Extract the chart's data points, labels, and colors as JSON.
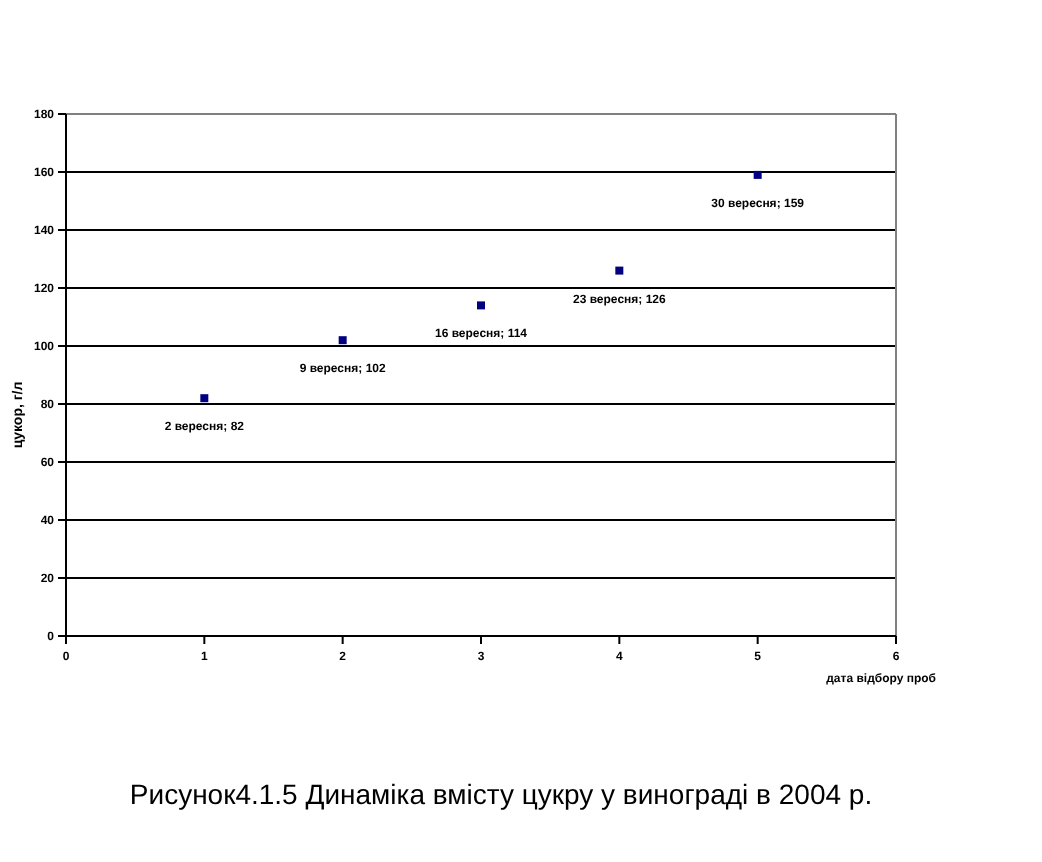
{
  "chart_data": {
    "type": "scatter",
    "title": "Рисунок4.1.5 Динаміка вмісту цукру у винограді в 2004 р.",
    "xlabel": "дата відбору проб",
    "ylabel": "цукор, г/л",
    "x": [
      1,
      2,
      3,
      4,
      5
    ],
    "values": [
      82,
      102,
      114,
      126,
      159
    ],
    "color": "#000080",
    "value_labels": [
      "2 вересня; 82",
      "9 вересня; 102",
      "16 вересня; 114",
      "23 вересня; 126",
      "30 вересня; 159"
    ],
    "xlim": [
      0,
      6
    ],
    "xticks": [
      0,
      1,
      2,
      3,
      4,
      5,
      6
    ],
    "ylim": [
      0,
      180
    ],
    "yticks": [
      0,
      20,
      40,
      60,
      80,
      100,
      120,
      140,
      160,
      180
    ],
    "grid": "y",
    "marker": "square"
  }
}
